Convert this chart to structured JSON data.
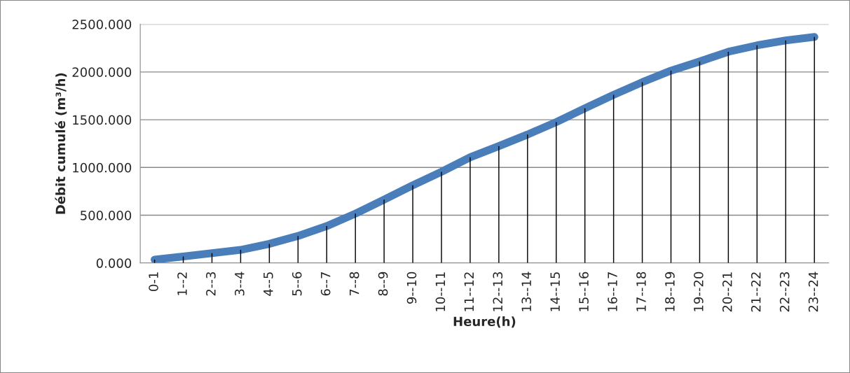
{
  "chart_data": {
    "type": "line",
    "xlabel": "Heure(h)",
    "ylabel": "Débit cumulé (m³/h)",
    "categories": [
      "0-1",
      "1--2",
      "2--3",
      "3--4",
      "4--5",
      "5--6",
      "6--7",
      "7--8",
      "8--9",
      "9--10",
      "10--11",
      "11--12",
      "12--13",
      "13--14",
      "14--15",
      "15--16",
      "16--17",
      "17--18",
      "18--19",
      "19--20",
      "20--21",
      "21--22",
      "22--23",
      "23--24"
    ],
    "series": [
      {
        "type": "bar",
        "color": "#000000",
        "values": [
          35,
          68,
          102,
          137,
          200,
          283,
          386,
          517,
          664,
          813,
          955,
          1107,
          1224,
          1345,
          1475,
          1619,
          1761,
          1893,
          2014,
          2110,
          2212,
          2279,
          2330,
          2367
        ]
      },
      {
        "color": "#4a7ebb",
        "values": [
          35,
          68,
          102,
          137,
          200,
          283,
          386,
          517,
          664,
          813,
          955,
          1107,
          1224,
          1345,
          1475,
          1619,
          1761,
          1893,
          2014,
          2110,
          2212,
          2279,
          2330,
          2367
        ]
      }
    ],
    "ylim": [
      0,
      2500
    ],
    "yticks": [
      {
        "value": 0,
        "label": "0.000"
      },
      {
        "value": 500,
        "label": "500.000"
      },
      {
        "value": 1000,
        "label": "1000.000"
      },
      {
        "value": 1500,
        "label": "1500.000"
      },
      {
        "value": 2000,
        "label": "2000.000"
      },
      {
        "value": 2500,
        "label": "2500.000"
      }
    ],
    "grid": "y",
    "marker": "none",
    "line_style": "solid"
  }
}
